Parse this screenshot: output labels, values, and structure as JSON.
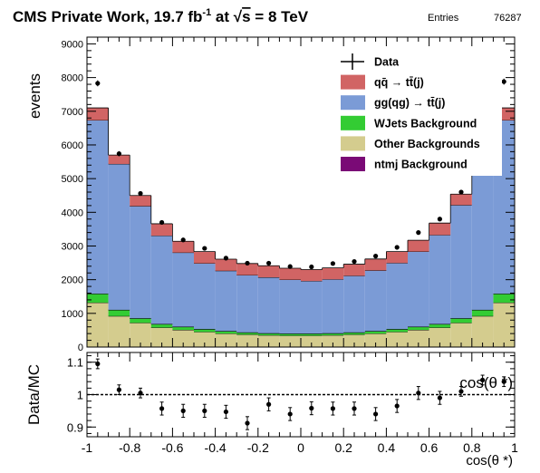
{
  "header": {
    "title_main": "CMS Private Work, 19.7 fb",
    "title_exp": "-1",
    "title_mid": " at  ",
    "title_sqrt": "√",
    "title_s": "s",
    "title_end": " = 8 TeV",
    "entries_label": "Entries",
    "entries_value": "76287"
  },
  "chart_data": [
    {
      "type": "area",
      "name": "main",
      "ylabel": "events",
      "xlim": [
        -1,
        1
      ],
      "ylim": [
        0,
        9200
      ],
      "y_ticks": [
        0,
        1000,
        2000,
        3000,
        4000,
        5000,
        6000,
        7000,
        8000,
        9000
      ],
      "x_bin_edges": [
        -1.0,
        -0.9,
        -0.8,
        -0.7,
        -0.6,
        -0.5,
        -0.4,
        -0.3,
        -0.2,
        -0.1,
        0.0,
        0.1,
        0.2,
        0.3,
        0.4,
        0.5,
        0.6,
        0.7,
        0.8,
        0.9,
        1.0
      ],
      "stacks": [
        {
          "name": "Other Backgrounds",
          "color": "#d4cc8e",
          "values": [
            1320,
            920,
            720,
            580,
            510,
            450,
            400,
            370,
            350,
            340,
            340,
            350,
            370,
            400,
            450,
            510,
            580,
            720,
            920,
            1320
          ]
        },
        {
          "name": "WJets Background",
          "color": "#33cc33",
          "values": [
            260,
            180,
            130,
            100,
            90,
            80,
            70,
            60,
            55,
            55,
            55,
            55,
            60,
            70,
            80,
            90,
            100,
            130,
            180,
            260
          ]
        },
        {
          "name": "ntmj Background",
          "color": "#7a0a76",
          "values": [
            5,
            5,
            5,
            5,
            5,
            5,
            5,
            5,
            5,
            5,
            5,
            5,
            5,
            5,
            5,
            5,
            5,
            5,
            5,
            5
          ]
        },
        {
          "name": "gg(qg) → tt̄(j)",
          "color": "#7b9bd6",
          "values": [
            5150,
            4330,
            3330,
            2620,
            2200,
            1950,
            1790,
            1700,
            1660,
            1600,
            1560,
            1600,
            1680,
            1800,
            1960,
            2230,
            2640,
            3360,
            4300,
            5150
          ]
        },
        {
          "name": "qq̄ → tt̄(j)",
          "color": "#d16464",
          "values": [
            365,
            265,
            315,
            355,
            335,
            350,
            345,
            345,
            345,
            340,
            340,
            340,
            345,
            340,
            340,
            335,
            355,
            325,
            260,
            365
          ]
        }
      ],
      "data_series": {
        "name": "Data",
        "values": [
          7830,
          5740,
          4560,
          3700,
          3180,
          2930,
          2640,
          2490,
          2490,
          2390,
          2380,
          2480,
          2540,
          2700,
          2960,
          3400,
          3800,
          4600,
          5750,
          7880
        ]
      },
      "legend": {
        "position": "top-right",
        "entries": [
          {
            "label": "Data",
            "kind": "data",
            "color": "#000000"
          },
          {
            "label": "qq̄ → tt̄(j)",
            "kind": "box",
            "color": "#d16464"
          },
          {
            "label": "gg(qg) → tt̄(j)",
            "kind": "box",
            "color": "#7b9bd6"
          },
          {
            "label": "WJets Background",
            "kind": "box",
            "color": "#33cc33"
          },
          {
            "label": "Other Backgrounds",
            "kind": "box",
            "color": "#d4cc8e"
          },
          {
            "label": "ntmj Background",
            "kind": "box",
            "color": "#7a0a76"
          }
        ]
      }
    },
    {
      "type": "scatter",
      "name": "ratio",
      "ylabel": "Data/MC",
      "xlabel": "cos(θ *)",
      "inner_label": "cos(θ *)",
      "xlim": [
        -1,
        1
      ],
      "ylim": [
        0.87,
        1.13
      ],
      "y_ticks": [
        0.9,
        1,
        1.1
      ],
      "y_tick_labels": [
        "0.9",
        "1",
        "1.1"
      ],
      "x_ticks": [
        -1,
        -0.8,
        -0.6,
        -0.4,
        -0.2,
        0,
        0.2,
        0.4,
        0.6,
        0.8,
        1
      ],
      "x_tick_labels": [
        "-1",
        "-0.8",
        "-0.6",
        "-0.4",
        "-0.2",
        "0",
        "0.2",
        "0.4",
        "0.6",
        "0.8",
        "1"
      ],
      "reference_line": 1,
      "x": [
        -0.95,
        -0.85,
        -0.75,
        -0.65,
        -0.55,
        -0.45,
        -0.35,
        -0.25,
        -0.15,
        -0.05,
        0.05,
        0.15,
        0.25,
        0.35,
        0.45,
        0.55,
        0.65,
        0.75,
        0.85,
        0.95
      ],
      "values": [
        1.095,
        1.015,
        1.005,
        0.957,
        0.95,
        0.95,
        0.947,
        0.912,
        0.97,
        0.94,
        0.958,
        0.957,
        0.957,
        0.94,
        0.965,
        1.005,
        0.99,
        1.01,
        1.045,
        1.04
      ],
      "errors": [
        0.015,
        0.015,
        0.015,
        0.02,
        0.02,
        0.02,
        0.02,
        0.02,
        0.02,
        0.02,
        0.02,
        0.02,
        0.02,
        0.02,
        0.02,
        0.02,
        0.02,
        0.015,
        0.015,
        0.015
      ]
    }
  ]
}
